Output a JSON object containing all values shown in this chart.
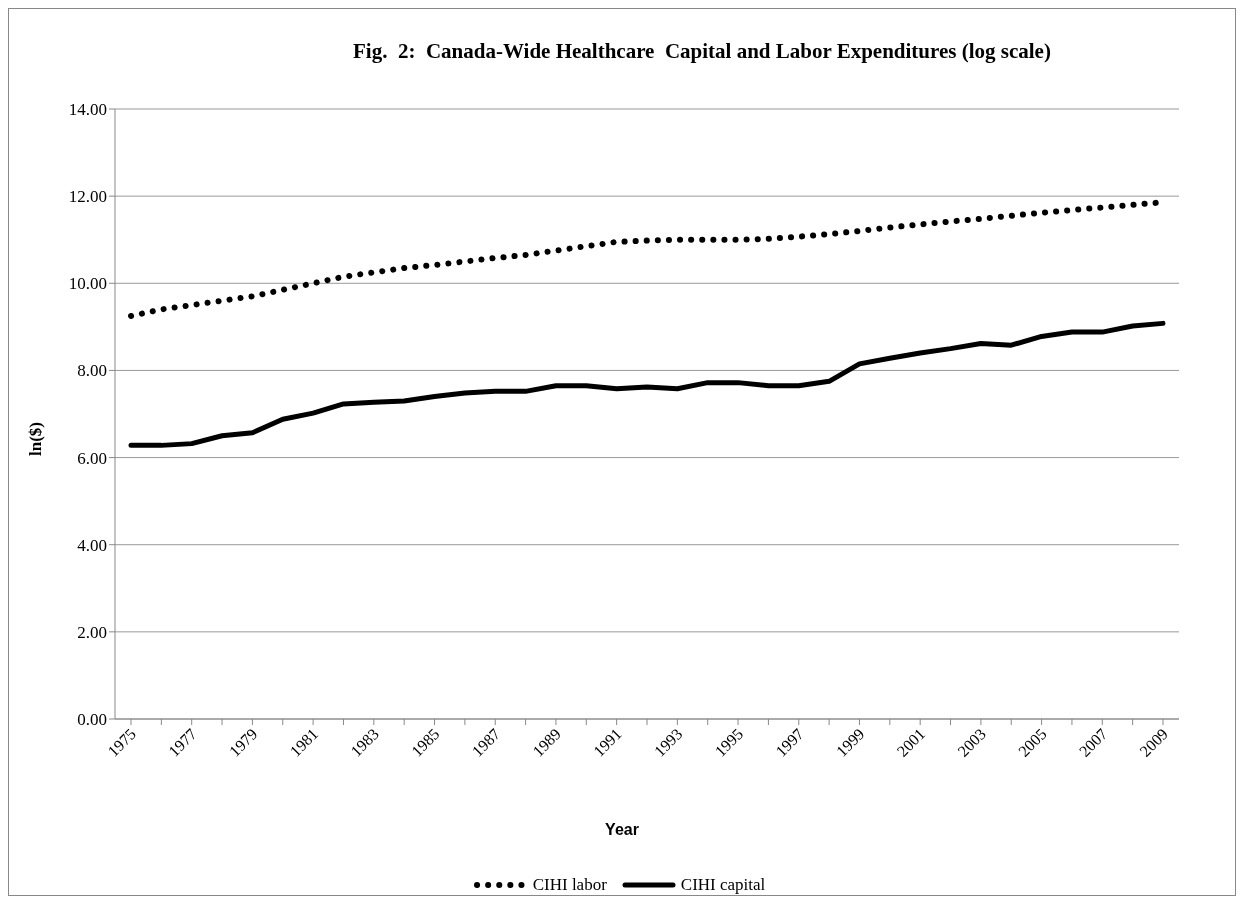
{
  "chart_data": {
    "type": "line",
    "title": "Fig.  2:  Canada-Wide Healthcare  Capital and Labor Expenditures (log scale)",
    "xlabel": "Year",
    "ylabel": "ln($)",
    "categories": [
      "1975",
      null,
      "1977",
      null,
      "1979",
      null,
      "1981",
      null,
      "1983",
      null,
      "1985",
      null,
      "1987",
      null,
      "1989",
      null,
      "1991",
      null,
      "1993",
      null,
      "1995",
      null,
      "1997",
      null,
      "1999",
      null,
      "2001",
      null,
      "2003",
      null,
      "2005",
      null,
      "2007",
      null,
      "2009"
    ],
    "series": [
      {
        "name": "CIHI labor",
        "color": "#000000",
        "line_style": "dotted",
        "values": [
          9.25,
          9.4,
          9.5,
          9.6,
          9.7,
          9.85,
          10.0,
          10.15,
          10.25,
          10.35,
          10.42,
          10.5,
          10.58,
          10.65,
          10.75,
          10.85,
          10.95,
          10.98,
          11.0,
          11.0,
          11.0,
          11.02,
          11.07,
          11.13,
          11.2,
          11.28,
          11.35,
          11.42,
          11.48,
          11.55,
          11.62,
          11.68,
          11.74,
          11.8,
          11.86
        ]
      },
      {
        "name": "CIHI capital",
        "color": "#000000",
        "line_style": "solid",
        "values": [
          6.28,
          6.28,
          6.32,
          6.5,
          6.57,
          6.88,
          7.02,
          7.23,
          7.27,
          7.3,
          7.4,
          7.48,
          7.52,
          7.52,
          7.65,
          7.65,
          7.58,
          7.62,
          7.58,
          7.72,
          7.72,
          7.65,
          7.65,
          7.75,
          8.15,
          8.28,
          8.4,
          8.5,
          8.62,
          8.58,
          8.78,
          8.88,
          8.88,
          9.02,
          9.08
        ]
      }
    ],
    "ylim": [
      0,
      14
    ],
    "yticks": [
      {
        "value": 0,
        "label": "0.00"
      },
      {
        "value": 2,
        "label": "2.00"
      },
      {
        "value": 4,
        "label": "4.00"
      },
      {
        "value": 6,
        "label": "6.00"
      },
      {
        "value": 8,
        "label": "8.00"
      },
      {
        "value": 10,
        "label": "10.00"
      },
      {
        "value": 12,
        "label": "12.00"
      },
      {
        "value": 14,
        "label": "14.00"
      }
    ],
    "grid": "y",
    "legend": "bottom"
  }
}
